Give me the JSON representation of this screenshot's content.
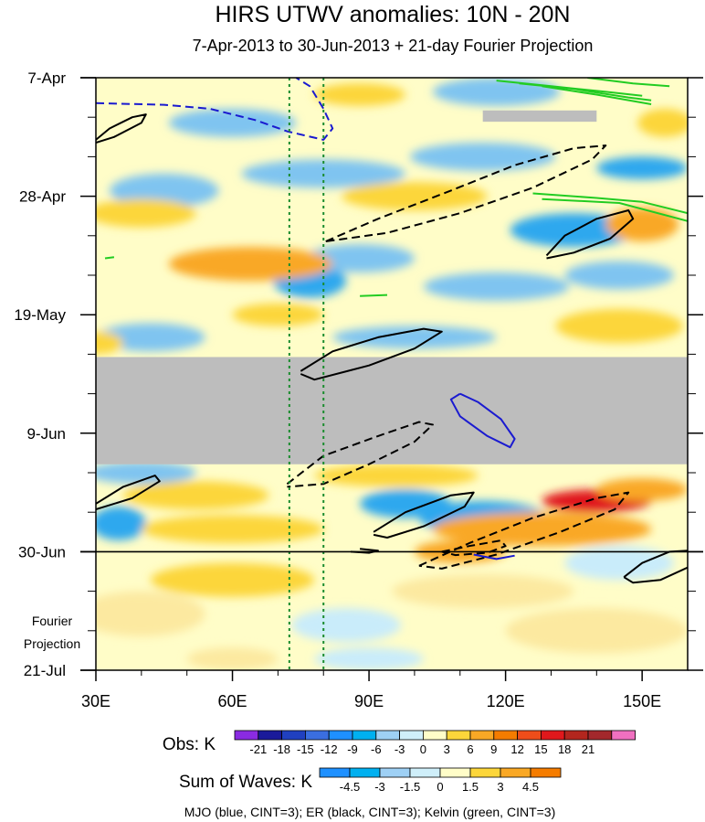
{
  "chart_data": {
    "type": "heatmap",
    "title": "HIRS UTWV anomalies: 10N - 20N",
    "subtitle": "7-Apr-2013 to 30-Jun-2013 + 21-day Fourier Projection",
    "xlabel": "",
    "ylabel": "",
    "x_ticks": [
      "30E",
      "60E",
      "90E",
      "120E",
      "150E"
    ],
    "x_tick_values": [
      30,
      60,
      90,
      120,
      150
    ],
    "xlim": [
      30,
      160
    ],
    "y_ticks": [
      "7-Apr",
      "28-Apr",
      "19-May",
      "9-Jun",
      "30-Jun",
      "21-Jul"
    ],
    "y_tick_values": [
      0,
      21,
      42,
      63,
      84,
      105
    ],
    "ylim": [
      0,
      105
    ],
    "y_direction": "down",
    "projection_label_line1": "Fourier",
    "projection_label_line2": "Projection",
    "projection_start_day": 84,
    "missing_data_band_days": [
      49.5,
      68.5
    ],
    "missing_data_strip": {
      "lon": [
        115,
        140
      ],
      "day": [
        5.8,
        7.8
      ]
    },
    "reference_lines": {
      "lon": [
        72.5,
        80
      ],
      "style": "dotted",
      "color": "#1a8c2e"
    },
    "obs_colorbar": {
      "label": "Obs: K",
      "levels": [
        "-21",
        "-18",
        "-15",
        "-12",
        "-9",
        "-6",
        "-3",
        "0",
        "3",
        "6",
        "9",
        "12",
        "15",
        "18",
        "21"
      ],
      "colors": [
        "#8a2be2",
        "#1a1a9a",
        "#2040c0",
        "#3a6ee0",
        "#1e90ff",
        "#00b0f0",
        "#9ed0f5",
        "#cfeffa",
        "#fffdc8",
        "#fcd63a",
        "#f9a825",
        "#f57c00",
        "#ee4d1a",
        "#e0181c",
        "#b3261e",
        "#a3282c",
        "#f070c0"
      ]
    },
    "waves_colorbar": {
      "label": "Sum of Waves: K",
      "levels": [
        "-4.5",
        "-3",
        "-1.5",
        "0",
        "1.5",
        "3",
        "4.5"
      ],
      "colors": [
        "#1e90ff",
        "#00b0f0",
        "#9ed0f5",
        "#cfeffa",
        "#fffdc8",
        "#fcd63a",
        "#f9a825",
        "#f57c00"
      ]
    },
    "footnote": "MJO (blue, CINT=3); ER (black, CINT=3); Kelvin (green, CINT=3)",
    "field_blobs": [
      {
        "lon": 45,
        "day": 20,
        "rx": 12,
        "ry": 3,
        "v": -5
      },
      {
        "lon": 80,
        "day": 17,
        "rx": 18,
        "ry": 2.5,
        "v": -4
      },
      {
        "lon": 115,
        "day": 14,
        "rx": 16,
        "ry": 2.5,
        "v": -5
      },
      {
        "lon": 150,
        "day": 16,
        "rx": 10,
        "ry": 2,
        "v": -6
      },
      {
        "lon": 135,
        "day": 27,
        "rx": 14,
        "ry": 3,
        "v": -8
      },
      {
        "lon": 118,
        "day": 2.5,
        "rx": 14,
        "ry": 2.5,
        "v": -5
      },
      {
        "lon": 60,
        "day": 8,
        "rx": 14,
        "ry": 2.5,
        "v": -4
      },
      {
        "lon": 77,
        "day": 36,
        "rx": 8,
        "ry": 3,
        "v": -10
      },
      {
        "lon": 88,
        "day": 32,
        "rx": 12,
        "ry": 2.5,
        "v": -5
      },
      {
        "lon": 118,
        "day": 37,
        "rx": 16,
        "ry": 2.5,
        "v": -5
      },
      {
        "lon": 145,
        "day": 35,
        "rx": 12,
        "ry": 2.5,
        "v": -5
      },
      {
        "lon": 100,
        "day": 46,
        "rx": 18,
        "ry": 2,
        "v": -4
      },
      {
        "lon": 42,
        "day": 46,
        "rx": 12,
        "ry": 2.5,
        "v": -4
      },
      {
        "lon": 40,
        "day": 24,
        "rx": 12,
        "ry": 2.5,
        "v": 5
      },
      {
        "lon": 64,
        "day": 33,
        "rx": 18,
        "ry": 3,
        "v": 6
      },
      {
        "lon": 150,
        "day": 26,
        "rx": 8,
        "ry": 3,
        "v": 6
      },
      {
        "lon": 155,
        "day": 8,
        "rx": 6,
        "ry": 2.5,
        "v": 5
      },
      {
        "lon": 100,
        "day": 21,
        "rx": 16,
        "ry": 2.5,
        "v": 3
      },
      {
        "lon": 145,
        "day": 44,
        "rx": 14,
        "ry": 3,
        "v": 5
      },
      {
        "lon": 70,
        "day": 42,
        "rx": 10,
        "ry": 2,
        "v": 4
      },
      {
        "lon": 30,
        "day": 47,
        "rx": 6,
        "ry": 2,
        "v": 5
      },
      {
        "lon": 88,
        "day": 3,
        "rx": 10,
        "ry": 2,
        "v": 3
      },
      {
        "lon": 52,
        "day": 74,
        "rx": 16,
        "ry": 2.5,
        "v": 5
      },
      {
        "lon": 96,
        "day": 70.5,
        "rx": 18,
        "ry": 2,
        "v": 4
      },
      {
        "lon": 98,
        "day": 75.5,
        "rx": 10,
        "ry": 2.5,
        "v": -9
      },
      {
        "lon": 115,
        "day": 78,
        "rx": 14,
        "ry": 3,
        "v": -6
      },
      {
        "lon": 128,
        "day": 80,
        "rx": 24,
        "ry": 3,
        "v": 8
      },
      {
        "lon": 140,
        "day": 75,
        "rx": 12,
        "ry": 2,
        "v": 14
      },
      {
        "lon": 150,
        "day": 73,
        "rx": 10,
        "ry": 2,
        "v": 7
      },
      {
        "lon": 35,
        "day": 79,
        "rx": 6,
        "ry": 3,
        "v": -6
      },
      {
        "lon": 40,
        "day": 70,
        "rx": 12,
        "ry": 2,
        "v": -4
      },
      {
        "lon": 60,
        "day": 80,
        "rx": 20,
        "ry": 2.5,
        "v": 5
      },
      {
        "lon": 110,
        "day": 84,
        "rx": 10,
        "ry": 2,
        "v": 6
      },
      {
        "lon": 60,
        "day": 89,
        "rx": 18,
        "ry": 3,
        "v": 3
      },
      {
        "lon": 115,
        "day": 91,
        "rx": 20,
        "ry": 3,
        "v": 2
      },
      {
        "lon": 40,
        "day": 95,
        "rx": 14,
        "ry": 4,
        "v": 2
      },
      {
        "lon": 140,
        "day": 98,
        "rx": 20,
        "ry": 4,
        "v": 2
      },
      {
        "lon": 85,
        "day": 97,
        "rx": 12,
        "ry": 3,
        "v": -1
      },
      {
        "lon": 145,
        "day": 86,
        "rx": 12,
        "ry": 3,
        "v": -1
      },
      {
        "lon": 90,
        "day": 103,
        "rx": 12,
        "ry": 2,
        "v": -1
      },
      {
        "lon": 60,
        "day": 103,
        "rx": 10,
        "ry": 2,
        "v": 2
      }
    ],
    "er_contours": [
      {
        "style": "solid",
        "points": [
          [
            30,
            11
          ],
          [
            33,
            9
          ],
          [
            38,
            7
          ],
          [
            41,
            6.5
          ],
          [
            40,
            8
          ],
          [
            34,
            10.5
          ],
          [
            30,
            11.5
          ]
        ]
      },
      {
        "style": "solid",
        "points": [
          [
            129,
            31.5
          ],
          [
            133,
            28
          ],
          [
            140,
            25
          ],
          [
            147,
            23.5
          ],
          [
            148,
            25
          ],
          [
            143,
            28.5
          ],
          [
            135,
            31
          ],
          [
            129,
            32
          ]
        ]
      },
      {
        "style": "solid",
        "points": [
          [
            75,
            52
          ],
          [
            82,
            48.5
          ],
          [
            92,
            46
          ],
          [
            102,
            44.5
          ],
          [
            106,
            45
          ],
          [
            100,
            48
          ],
          [
            90,
            51
          ],
          [
            78,
            53.5
          ],
          [
            75,
            52.5
          ]
        ]
      },
      {
        "style": "solid",
        "points": [
          [
            30,
            75.5
          ],
          [
            36,
            72.5
          ],
          [
            43,
            70.5
          ],
          [
            44,
            71.5
          ],
          [
            38,
            74.5
          ],
          [
            30,
            76.5
          ]
        ]
      },
      {
        "style": "solid",
        "points": [
          [
            91,
            80.5
          ],
          [
            98,
            77
          ],
          [
            108,
            74
          ],
          [
            113,
            73.5
          ],
          [
            111,
            76
          ],
          [
            102,
            79.5
          ],
          [
            94,
            81.5
          ],
          [
            91,
            81
          ]
        ]
      },
      {
        "style": "solid",
        "points": [
          [
            146,
            88.5
          ],
          [
            150,
            86
          ],
          [
            156,
            84
          ],
          [
            160,
            83.8
          ]
        ]
      },
      {
        "style": "solid",
        "points": [
          [
            160,
            86.8
          ],
          [
            154,
            89
          ],
          [
            148,
            89.5
          ],
          [
            146,
            88.5
          ]
        ]
      },
      {
        "style": "solid",
        "points": [
          [
            88,
            83.5
          ],
          [
            92,
            83.8
          ],
          [
            90,
            84.2
          ],
          [
            86,
            84
          ]
        ]
      },
      {
        "style": "dashed",
        "points": [
          [
            80.5,
            29
          ],
          [
            92,
            25
          ],
          [
            108,
            20
          ],
          [
            122,
            15.5
          ],
          [
            135,
            12.5
          ],
          [
            142,
            12
          ],
          [
            139,
            14.5
          ],
          [
            126,
            19.5
          ],
          [
            110,
            24
          ],
          [
            94,
            27.5
          ],
          [
            80.5,
            29
          ]
        ]
      },
      {
        "style": "dashed",
        "points": [
          [
            72,
            72
          ],
          [
            80,
            67
          ],
          [
            92,
            63.5
          ],
          [
            101,
            61
          ],
          [
            104,
            61.5
          ],
          [
            100,
            64.5
          ],
          [
            90,
            68.5
          ],
          [
            80,
            72
          ],
          [
            72,
            72.5
          ]
        ]
      },
      {
        "style": "dashed",
        "points": [
          [
            101,
            86.5
          ],
          [
            112,
            82.5
          ],
          [
            126,
            78
          ],
          [
            140,
            74.5
          ],
          [
            147,
            73.5
          ],
          [
            144,
            76.5
          ],
          [
            132,
            80.5
          ],
          [
            118,
            84.5
          ],
          [
            106,
            87
          ],
          [
            101,
            86.5
          ]
        ]
      },
      {
        "style": "dashed",
        "points": [
          [
            106,
            84
          ],
          [
            112,
            83
          ],
          [
            119,
            82
          ],
          [
            120,
            83
          ],
          [
            116,
            84.2
          ],
          [
            109,
            84.6
          ],
          [
            106,
            84
          ]
        ]
      }
    ],
    "mjo_contours": [
      {
        "style": "dashed",
        "points": [
          [
            30,
            4.5
          ],
          [
            45,
            4.8
          ],
          [
            55,
            5.5
          ],
          [
            65,
            7.5
          ],
          [
            72,
            9.5
          ],
          [
            80,
            11
          ],
          [
            82,
            9
          ],
          [
            80,
            5.5
          ],
          [
            77,
            1.5
          ],
          [
            74,
            0
          ]
        ]
      },
      {
        "style": "solid",
        "points": [
          [
            110,
            56
          ],
          [
            114,
            57.5
          ],
          [
            119,
            60.5
          ],
          [
            122,
            64
          ],
          [
            121,
            65.5
          ],
          [
            116,
            63.5
          ],
          [
            110,
            60
          ],
          [
            108,
            57
          ],
          [
            110,
            56
          ]
        ]
      },
      {
        "style": "solid",
        "points": [
          [
            113,
            84.5
          ],
          [
            118,
            85.3
          ],
          [
            122,
            84.7
          ]
        ]
      }
    ],
    "kelvin_contours": [
      {
        "style": "solid",
        "points": [
          [
            118,
            0.5
          ],
          [
            130,
            1.5
          ],
          [
            142,
            2.5
          ],
          [
            150,
            3.2
          ]
        ]
      },
      {
        "style": "solid",
        "points": [
          [
            123,
            1
          ],
          [
            135,
            2
          ],
          [
            147,
            3.5
          ],
          [
            152,
            4
          ]
        ]
      },
      {
        "style": "solid",
        "points": [
          [
            128,
            1.5
          ],
          [
            140,
            3
          ],
          [
            152,
            4.7
          ]
        ]
      },
      {
        "style": "solid",
        "points": [
          [
            138,
            0
          ],
          [
            148,
            1
          ],
          [
            156,
            1.5
          ]
        ]
      },
      {
        "style": "solid",
        "points": [
          [
            126,
            20.5
          ],
          [
            140,
            21.3
          ],
          [
            150,
            22
          ],
          [
            160,
            24
          ]
        ]
      },
      {
        "style": "solid",
        "points": [
          [
            128,
            21.5
          ],
          [
            145,
            22.2
          ],
          [
            160,
            25.4
          ]
        ]
      },
      {
        "style": "solid",
        "points": [
          [
            32,
            32
          ],
          [
            34,
            31.8
          ]
        ]
      },
      {
        "style": "solid",
        "points": [
          [
            88,
            38.7
          ],
          [
            94,
            38.5
          ]
        ]
      }
    ]
  }
}
